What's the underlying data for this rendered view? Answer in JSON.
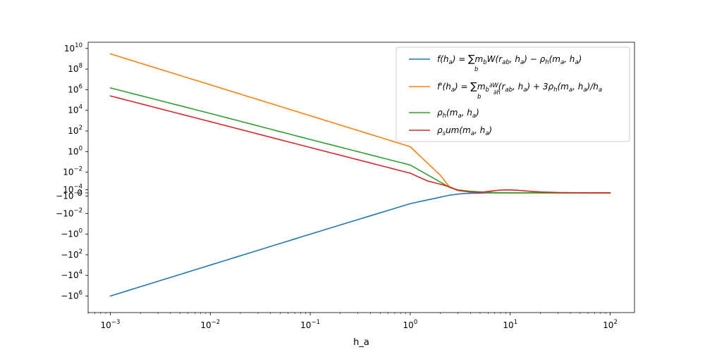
{
  "chart_data": {
    "type": "line",
    "title": "",
    "xlabel": "h_a",
    "ylabel": "",
    "x_scale": "log",
    "y_scale": "symlog",
    "symlog_linthresh": 0.0001,
    "xlim": [
      0.0006,
      175
    ],
    "ylim": [
      -40000000,
      40000000000
    ],
    "grid": false,
    "legend_position": "top-right",
    "x_ticks": [
      {
        "value": 0.001,
        "base": "10",
        "exp": "−3"
      },
      {
        "value": 0.01,
        "base": "10",
        "exp": "−2"
      },
      {
        "value": 0.1,
        "base": "10",
        "exp": "−1"
      },
      {
        "value": 1,
        "base": "10",
        "exp": "0"
      },
      {
        "value": 10,
        "base": "10",
        "exp": "1"
      },
      {
        "value": 100,
        "base": "10",
        "exp": "2"
      }
    ],
    "y_ticks": [
      {
        "value": 10000000000,
        "base": "10",
        "exp": "10"
      },
      {
        "value": 100000000,
        "base": "10",
        "exp": "8"
      },
      {
        "value": 1000000,
        "base": "10",
        "exp": "6"
      },
      {
        "value": 10000,
        "base": "10",
        "exp": "4"
      },
      {
        "value": 100,
        "base": "10",
        "exp": "2"
      },
      {
        "value": 1,
        "base": "10",
        "exp": "0"
      },
      {
        "value": 0.01,
        "base": "10",
        "exp": "−2"
      },
      {
        "value": 0.0001,
        "base": "10",
        "exp": "−4"
      },
      {
        "value": 0,
        "base": "0",
        "exp": ""
      },
      {
        "value": -0.0001,
        "base": "−10",
        "exp": "−4"
      },
      {
        "value": -0.01,
        "base": "−10",
        "exp": "−2"
      },
      {
        "value": -1,
        "base": "−10",
        "exp": "0"
      },
      {
        "value": -100,
        "base": "−10",
        "exp": "2"
      },
      {
        "value": -10000,
        "base": "−10",
        "exp": "4"
      },
      {
        "value": -1000000,
        "base": "−10",
        "exp": "6"
      }
    ],
    "series": [
      {
        "name": "f(h_a) = Σ_b m_b W(r_ab, h_a) − ρ_h(m_a, h_a)",
        "color": "#1f77b4",
        "points": [
          [
            0.001,
            -1000000
          ],
          [
            0.01,
            -1000
          ],
          [
            0.1,
            -1
          ],
          [
            1,
            -0.001
          ],
          [
            2.5,
            -6.4e-05
          ],
          [
            3.3,
            -1.8e-05
          ],
          [
            4,
            -9.5e-06
          ],
          [
            5,
            -6e-06
          ],
          [
            5.5,
            -3e-06
          ],
          [
            7,
            -6e-07
          ],
          [
            10,
            -2e-07
          ],
          [
            20,
            -5e-08
          ],
          [
            100,
            0
          ]
        ]
      },
      {
        "name": "f'(h_a) = Σ_b m_b ∂W/∂h (r_ab, h_a) + 3ρ_h(m_a, h_a)/h_a",
        "color": "#ff7f0e",
        "points": [
          [
            0.001,
            3000000000
          ],
          [
            0.01,
            3000000
          ],
          [
            0.1,
            3000
          ],
          [
            1,
            3
          ],
          [
            2,
            0.005
          ],
          [
            2.5,
            0.00023
          ],
          [
            3,
            7e-05
          ],
          [
            4,
            2.8e-05
          ],
          [
            5,
            1.4e-05
          ],
          [
            6,
            7.5e-06
          ],
          [
            7,
            4e-06
          ],
          [
            8,
            2.2e-06
          ],
          [
            9,
            1.2e-06
          ],
          [
            10,
            7e-07
          ],
          [
            15,
            2.5e-07
          ],
          [
            25,
            1e-07
          ],
          [
            100,
            2e-08
          ]
        ]
      },
      {
        "name": "ρ_h(m_a, h_a)",
        "color": "#2ca02c",
        "points": [
          [
            0.001,
            1500000
          ],
          [
            0.01,
            5000
          ],
          [
            0.1,
            15
          ],
          [
            1,
            0.05
          ],
          [
            2.5,
            0.00023
          ],
          [
            3,
            9.5e-05
          ],
          [
            4,
            4.3e-05
          ],
          [
            5,
            2.5e-05
          ],
          [
            6,
            1.3e-05
          ],
          [
            7,
            6.5e-06
          ],
          [
            8,
            3.5e-06
          ],
          [
            10,
            1.5e-06
          ],
          [
            15,
            5e-07
          ],
          [
            30,
            1e-07
          ],
          [
            100,
            2e-08
          ]
        ]
      },
      {
        "name": "ρ_sum(m_a, h_a)",
        "color": "#d62728",
        "points": [
          [
            0.001,
            250000
          ],
          [
            0.01,
            800
          ],
          [
            0.1,
            2.5
          ],
          [
            1,
            0.008
          ],
          [
            1.5,
            0.0013
          ],
          [
            2,
            0.0006
          ],
          [
            2.5,
            0.00027
          ],
          [
            3,
            7.5e-05
          ],
          [
            4,
            1.8e-05
          ],
          [
            5,
            1.3e-05
          ],
          [
            6,
            3.7e-05
          ],
          [
            7,
            6.5e-05
          ],
          [
            8,
            8.5e-05
          ],
          [
            9,
            9.3e-05
          ],
          [
            10,
            9.3e-05
          ],
          [
            12,
            7.8e-05
          ],
          [
            15,
            4.8e-05
          ],
          [
            20,
            2.4e-05
          ],
          [
            30,
            8.5e-06
          ],
          [
            50,
            2.5e-06
          ],
          [
            100,
            5e-07
          ]
        ]
      }
    ]
  }
}
